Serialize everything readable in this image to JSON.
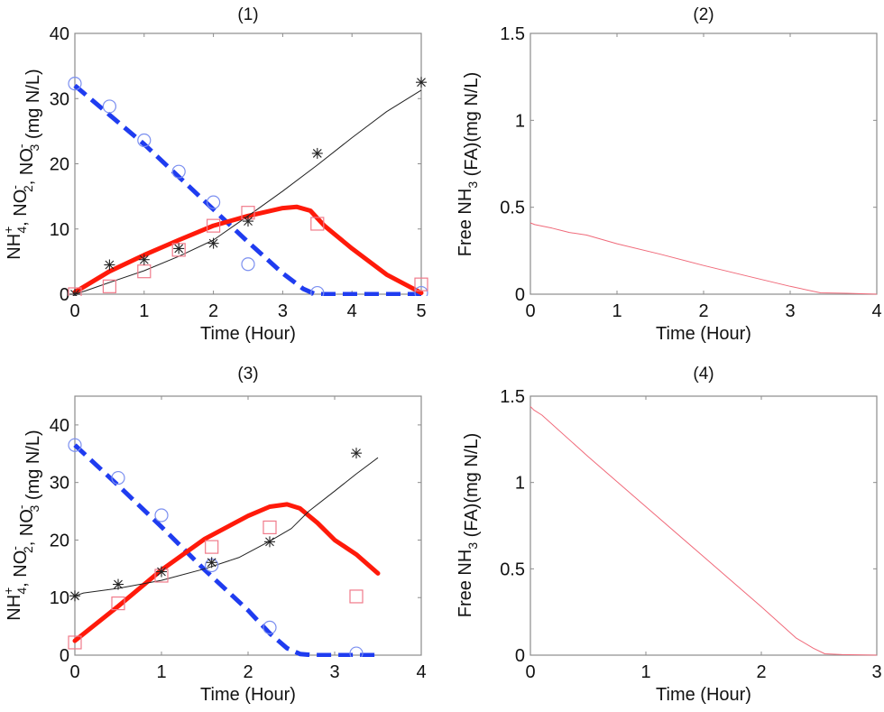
{
  "figure": {
    "panels": [
      {
        "id": "panel-1",
        "title": "(1)"
      },
      {
        "id": "panel-2",
        "title": "(2)"
      },
      {
        "id": "panel-3",
        "title": "(3)"
      },
      {
        "id": "panel-4",
        "title": "(4)"
      }
    ]
  },
  "colors": {
    "nh4": "#1f3cf0",
    "nh4_marker": "#7b8ff0",
    "no2": "#ff1a0a",
    "no2_marker": "#f07a8a",
    "no3": "#222222",
    "fa": "#f06a7a",
    "axis": "#8c8c8c"
  },
  "chart_data": [
    {
      "panel": "(1)",
      "type": "line",
      "title": "(1)",
      "xlabel": "Time (Hour)",
      "ylabel": "NH4+, NO2-, NO3- (mg N/L)",
      "ylabel_parts": [
        "NH",
        "+",
        "4",
        ", NO",
        "-",
        "2",
        ", NO",
        "-",
        "3",
        " (mg N/L)"
      ],
      "xlim": [
        0,
        5
      ],
      "ylim": [
        0,
        40
      ],
      "xticks": [
        0,
        1,
        2,
        3,
        4,
        5
      ],
      "yticks": [
        0,
        10,
        20,
        30,
        40
      ],
      "grid": false,
      "series": [
        {
          "name": "NH4+ model",
          "style": "dashed-thick",
          "color_key": "nh4",
          "x": [
            0,
            0.5,
            1,
            1.5,
            2,
            2.5,
            3,
            3.3,
            3.45,
            3.55,
            4,
            4.5,
            5
          ],
          "y": [
            32,
            27.5,
            23,
            18,
            13,
            8,
            3.2,
            0.8,
            0.1,
            0,
            0,
            0,
            0
          ]
        },
        {
          "name": "NO2- model",
          "style": "solid-thick",
          "color_key": "no2",
          "x": [
            0,
            0.5,
            1,
            1.5,
            2,
            2.5,
            3,
            3.2,
            3.4,
            3.6,
            4,
            4.5,
            5
          ],
          "y": [
            0.3,
            3.5,
            6,
            8.3,
            10.5,
            12,
            13.2,
            13.4,
            12.8,
            10.5,
            7,
            3,
            0.2
          ]
        },
        {
          "name": "NO3- model",
          "style": "solid-thin",
          "color_key": "no3",
          "x": [
            0,
            0.15,
            0.5,
            1,
            1.5,
            2,
            2.5,
            3,
            3.5,
            4,
            4.5,
            5
          ],
          "y": [
            0,
            0.5,
            1.8,
            3.6,
            5.8,
            8.3,
            12,
            15.8,
            19.8,
            24,
            28,
            31.3
          ]
        },
        {
          "name": "NH4+ measured",
          "marker": "circle",
          "color_key": "nh4_marker",
          "x": [
            0,
            0.5,
            1,
            1.5,
            2,
            2.5,
            3.5,
            5
          ],
          "y": [
            32.3,
            28.8,
            23.6,
            18.8,
            14.1,
            4.6,
            0.2,
            0.2
          ]
        },
        {
          "name": "NO2- measured",
          "marker": "square",
          "color_key": "no2_marker",
          "x": [
            0,
            0.5,
            1,
            1.5,
            2,
            2.5,
            3.5,
            5
          ],
          "y": [
            0,
            1.2,
            3.5,
            6.8,
            10.5,
            12.5,
            10.8,
            1.5
          ]
        },
        {
          "name": "NO3- measured",
          "marker": "asterisk",
          "color_key": "no3",
          "x": [
            0,
            0.5,
            1,
            1.5,
            2,
            2.5,
            3.5,
            5
          ],
          "y": [
            0,
            4.5,
            5.3,
            7,
            7.8,
            11.2,
            21.6,
            32.5
          ]
        }
      ]
    },
    {
      "panel": "(2)",
      "type": "line",
      "title": "(2)",
      "xlabel": "Time (Hour)",
      "ylabel": "Free NH3 (FA)(mg N/L)",
      "ylabel_parts": [
        "Free NH",
        "",
        "3",
        " (FA)(mg N/L)"
      ],
      "xlim": [
        0,
        4
      ],
      "ylim": [
        0,
        1.5
      ],
      "xticks": [
        0,
        1,
        2,
        3,
        4
      ],
      "ytick_labels": [
        "0",
        "0.5",
        "1",
        "1.5"
      ],
      "yticks": [
        0,
        0.5,
        1,
        1.5
      ],
      "grid": false,
      "series": [
        {
          "name": "Free ammonia",
          "style": "solid-thin",
          "color_key": "fa",
          "x": [
            0,
            0.05,
            0.25,
            0.45,
            0.65,
            1,
            1.5,
            2,
            2.5,
            3,
            3.35,
            3.65,
            4
          ],
          "y": [
            0.41,
            0.4,
            0.38,
            0.355,
            0.34,
            0.29,
            0.23,
            0.165,
            0.105,
            0.045,
            0.008,
            0.005,
            0
          ]
        }
      ]
    },
    {
      "panel": "(3)",
      "type": "line",
      "title": "(3)",
      "xlabel": "Time (Hour)",
      "ylabel": "NH4+, NO2-, NO3- (mg N/L)",
      "ylabel_parts": [
        "NH",
        "+",
        "4",
        ", NO",
        "-",
        "2",
        ", NO",
        "-",
        "3",
        " (mg N/L)"
      ],
      "xlim": [
        0,
        4
      ],
      "ylim": [
        0,
        45
      ],
      "xticks": [
        0,
        1,
        2,
        3,
        4
      ],
      "yticks": [
        0,
        10,
        20,
        30,
        40
      ],
      "grid": false,
      "series": [
        {
          "name": "NH4+ model",
          "style": "dashed-thick",
          "color_key": "nh4",
          "x": [
            0,
            0.5,
            1,
            1.5,
            2,
            2.25,
            2.45,
            2.6,
            2.75,
            3,
            3.5
          ],
          "y": [
            36.5,
            29.5,
            22.3,
            14.8,
            7.8,
            3.8,
            1.2,
            0.2,
            0,
            0,
            0
          ]
        },
        {
          "name": "NO2- model",
          "style": "solid-thick",
          "color_key": "no2",
          "x": [
            0,
            0.5,
            1,
            1.5,
            2,
            2.25,
            2.45,
            2.6,
            2.8,
            3,
            3.25,
            3.5
          ],
          "y": [
            2.5,
            8.5,
            14.8,
            20.2,
            24.2,
            25.8,
            26.2,
            25.5,
            23,
            20,
            17.5,
            14.2
          ]
        },
        {
          "name": "NO3- model",
          "style": "solid-thin",
          "color_key": "no3",
          "x": [
            0,
            0.1,
            0.5,
            1,
            1.5,
            1.9,
            2.25,
            2.5,
            2.7,
            3,
            3.25,
            3.5
          ],
          "y": [
            10.3,
            10.8,
            11.6,
            13,
            15,
            17,
            19.8,
            22,
            25,
            28.5,
            31.5,
            34.3
          ]
        },
        {
          "name": "NH4+ measured",
          "marker": "circle",
          "color_key": "nh4_marker",
          "x": [
            0,
            0.5,
            1,
            1.58,
            2.25,
            3.25
          ],
          "y": [
            36.5,
            30.8,
            24.3,
            15.6,
            4.8,
            0.3
          ]
        },
        {
          "name": "NO2- measured",
          "marker": "square",
          "color_key": "no2_marker",
          "x": [
            0,
            0.5,
            1,
            1.58,
            2.25,
            3.25
          ],
          "y": [
            2.2,
            9,
            13.8,
            18.8,
            22.2,
            10.2
          ]
        },
        {
          "name": "NO3- measured",
          "marker": "asterisk",
          "color_key": "no3",
          "x": [
            0,
            0.5,
            1,
            1.58,
            2.25,
            3.25
          ],
          "y": [
            10.3,
            12.3,
            14.5,
            16.1,
            19.7,
            35.1
          ]
        }
      ]
    },
    {
      "panel": "(4)",
      "type": "line",
      "title": "(4)",
      "xlabel": "Time (Hour)",
      "ylabel": "Free NH3 (FA)(mg N/L)",
      "ylabel_parts": [
        "Free NH",
        "",
        "3",
        " (FA)(mg N/L)"
      ],
      "xlim": [
        0,
        3
      ],
      "ylim": [
        0,
        1.5
      ],
      "xticks": [
        0,
        1,
        2,
        3
      ],
      "ytick_labels": [
        "0",
        "0.5",
        "1",
        "1.5"
      ],
      "yticks": [
        0,
        0.5,
        1,
        1.5
      ],
      "grid": false,
      "series": [
        {
          "name": "Free ammonia",
          "style": "solid-thin",
          "color_key": "fa",
          "x": [
            0,
            0.03,
            0.1,
            0.5,
            1,
            1.5,
            2,
            2.3,
            2.45,
            2.55,
            2.7,
            3
          ],
          "y": [
            1.44,
            1.42,
            1.39,
            1.15,
            0.86,
            0.57,
            0.28,
            0.1,
            0.04,
            0.008,
            0.003,
            0
          ]
        }
      ]
    }
  ]
}
